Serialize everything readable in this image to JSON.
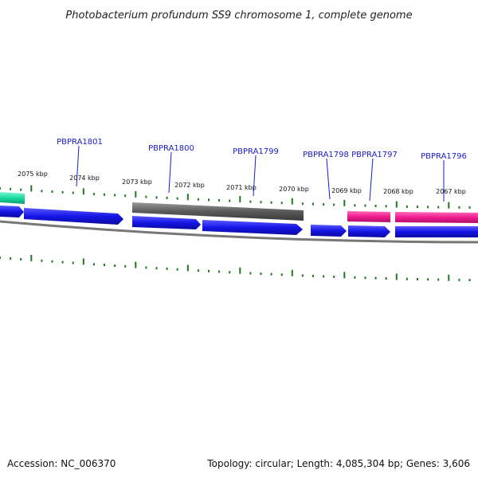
{
  "header": {
    "title": "Photobacterium profundum SS9 chromosome 1, complete genome"
  },
  "footer": {
    "accession": "Accession: NC_006370",
    "summary": "Topology: circular; Length: 4,085,304 bp; Genes: 3,606"
  },
  "scale": {
    "ticks": [
      "2075 kbp",
      "2074 kbp",
      "2073 kbp",
      "2072 kbp",
      "2071 kbp",
      "2070 kbp",
      "2069 kbp",
      "2068 kbp",
      "2067 kbp"
    ]
  },
  "genes": {
    "labels": [
      "PBPRA1801",
      "PBPRA1800",
      "PBPRA1799",
      "PBPRA1798",
      "PBPRA1797",
      "PBPRA1796"
    ]
  },
  "colors": {
    "tick": "#1f7a1f",
    "cds_blue": "#1515e6",
    "rrna_gray": "#5a5a5a",
    "trna_pink": "#ee1b8e",
    "misc_teal": "#1adba0",
    "label_blue": "#1a1acc",
    "backbone": "#777777"
  }
}
